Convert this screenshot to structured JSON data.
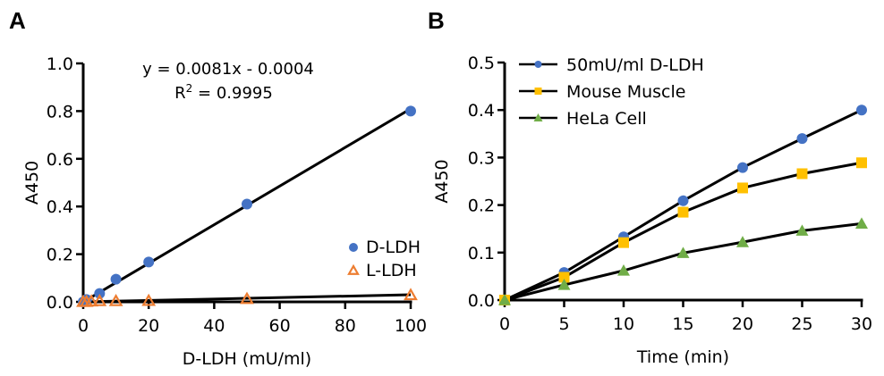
{
  "chart_data": [
    {
      "panel": "A",
      "type": "scatter",
      "title": "",
      "xlabel": "D-LDH (mU/ml)",
      "ylabel": "A450",
      "xlim": [
        0,
        100
      ],
      "ylim": [
        0,
        1.0
      ],
      "xticks": [
        0,
        20,
        40,
        60,
        80,
        100
      ],
      "yticks": [
        0.0,
        0.2,
        0.4,
        0.6,
        0.8,
        1.0
      ],
      "xtick_labels": [
        "0",
        "20",
        "40",
        "60",
        "80",
        "100"
      ],
      "ytick_labels": [
        "0.0",
        "0.2",
        "0.4",
        "0.6",
        "0.8",
        "1.0"
      ],
      "grid": false,
      "legend_position": "bottom-right",
      "annotation": {
        "equation": "y = 0.0081x - 0.0004",
        "r2_label": "R",
        "r2_sup": "2",
        "r2_value": "= 0.9995"
      },
      "series": [
        {
          "name": "D-LDH",
          "marker": "circle-filled",
          "color": "#4472C4",
          "x": [
            0,
            1,
            5,
            10,
            20,
            50,
            100
          ],
          "y": [
            0.0,
            0.01,
            0.035,
            0.095,
            0.167,
            0.41,
            0.8
          ],
          "fit": {
            "slope": 0.0081,
            "intercept": -0.0004
          }
        },
        {
          "name": "L-LDH",
          "marker": "triangle-open",
          "color": "#ED7D31",
          "x": [
            0,
            1,
            2.5,
            5,
            10,
            20,
            50,
            100
          ],
          "y": [
            0.0,
            0.0,
            0.002,
            0.003,
            0.003,
            0.004,
            0.012,
            0.028
          ],
          "fit": {
            "slope": 0.0003,
            "intercept": 0.0
          }
        }
      ]
    },
    {
      "panel": "B",
      "type": "line",
      "title": "",
      "xlabel": "Time (min)",
      "ylabel": "A450",
      "xlim": [
        0,
        30
      ],
      "ylim": [
        0,
        0.5
      ],
      "xticks": [
        0,
        5,
        10,
        15,
        20,
        25,
        30
      ],
      "yticks": [
        0.0,
        0.1,
        0.2,
        0.3,
        0.4,
        0.5
      ],
      "xtick_labels": [
        "0",
        "5",
        "10",
        "15",
        "20",
        "25",
        "30"
      ],
      "ytick_labels": [
        "0.0",
        "0.1",
        "0.2",
        "0.3",
        "0.4",
        "0.5"
      ],
      "grid": false,
      "legend_position": "top-left",
      "x": [
        0,
        5,
        10,
        15,
        20,
        25,
        30
      ],
      "series": [
        {
          "name": "50mU/ml D-LDH",
          "marker": "circle",
          "color": "#4472C4",
          "values": [
            0.0,
            0.058,
            0.133,
            0.209,
            0.279,
            0.34,
            0.4
          ]
        },
        {
          "name": "Mouse Muscle",
          "marker": "square",
          "color": "#FFC000",
          "values": [
            0.0,
            0.048,
            0.121,
            0.185,
            0.236,
            0.266,
            0.289
          ]
        },
        {
          "name": "HeLa Cell",
          "marker": "triangle",
          "color": "#70AD47",
          "values": [
            0.0,
            0.032,
            0.062,
            0.099,
            0.122,
            0.146,
            0.161
          ]
        }
      ]
    }
  ],
  "panels": {
    "a_label": "A",
    "b_label": "B"
  }
}
